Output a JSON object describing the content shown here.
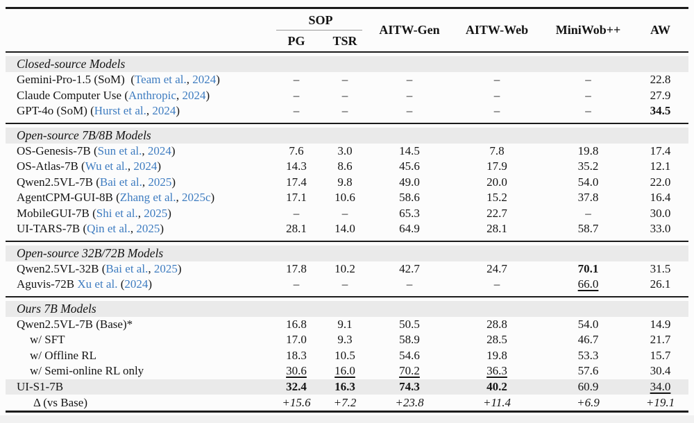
{
  "colors": {
    "link": "#3e7cc0",
    "band": "#eaeaea",
    "rule": "#1b1b1b",
    "subrule": "#9a9a9a",
    "text": "#141414"
  },
  "header": {
    "sop": "SOP",
    "pg": "PG",
    "tsr": "TSR",
    "cols": [
      "AITW-Gen",
      "AITW-Web",
      "MiniWob++",
      "AW"
    ]
  },
  "sections": [
    {
      "title": "Closed-source Models",
      "rows": [
        {
          "name": [
            {
              "t": "Gemini-Pro-1.5 (SoM)  (",
              "s": "t"
            },
            {
              "t": "Team et al.",
              "s": "l"
            },
            {
              "t": ", ",
              "s": "t"
            },
            {
              "t": "2024",
              "s": "l"
            },
            {
              "t": ")",
              "s": "t"
            }
          ],
          "values": [
            {
              "t": "–"
            },
            {
              "t": "–"
            },
            {
              "t": "–"
            },
            {
              "t": "–"
            },
            {
              "t": "–"
            },
            {
              "t": "22.8"
            }
          ]
        },
        {
          "name": [
            {
              "t": "Claude Computer Use (",
              "s": "t"
            },
            {
              "t": "Anthropic",
              "s": "l"
            },
            {
              "t": ", ",
              "s": "t"
            },
            {
              "t": "2024",
              "s": "l"
            },
            {
              "t": ")",
              "s": "t"
            }
          ],
          "values": [
            {
              "t": "–"
            },
            {
              "t": "–"
            },
            {
              "t": "–"
            },
            {
              "t": "–"
            },
            {
              "t": "–"
            },
            {
              "t": "27.9"
            }
          ]
        },
        {
          "name": [
            {
              "t": "GPT-4o (SoM) (",
              "s": "t"
            },
            {
              "t": "Hurst et al.",
              "s": "l"
            },
            {
              "t": ", ",
              "s": "t"
            },
            {
              "t": "2024",
              "s": "l"
            },
            {
              "t": ")",
              "s": "t"
            }
          ],
          "values": [
            {
              "t": "–"
            },
            {
              "t": "–"
            },
            {
              "t": "–"
            },
            {
              "t": "–"
            },
            {
              "t": "–"
            },
            {
              "t": "34.5",
              "s": "b"
            }
          ]
        }
      ]
    },
    {
      "title": "Open-source 7B/8B Models",
      "rows": [
        {
          "name": [
            {
              "t": "OS-Genesis-7B (",
              "s": "t"
            },
            {
              "t": "Sun et al.",
              "s": "l"
            },
            {
              "t": ", ",
              "s": "t"
            },
            {
              "t": "2024",
              "s": "l"
            },
            {
              "t": ")",
              "s": "t"
            }
          ],
          "values": [
            {
              "t": "7.6"
            },
            {
              "t": "3.0"
            },
            {
              "t": "14.5"
            },
            {
              "t": "7.8"
            },
            {
              "t": "19.8"
            },
            {
              "t": "17.4"
            }
          ]
        },
        {
          "name": [
            {
              "t": "OS-Atlas-7B (",
              "s": "t"
            },
            {
              "t": "Wu et al.",
              "s": "l"
            },
            {
              "t": ", ",
              "s": "t"
            },
            {
              "t": "2024",
              "s": "l"
            },
            {
              "t": ")",
              "s": "t"
            }
          ],
          "values": [
            {
              "t": "14.3"
            },
            {
              "t": "8.6"
            },
            {
              "t": "45.6"
            },
            {
              "t": "17.9"
            },
            {
              "t": "35.2"
            },
            {
              "t": "12.1"
            }
          ]
        },
        {
          "name": [
            {
              "t": "Qwen2.5VL-7B (",
              "s": "t"
            },
            {
              "t": "Bai et al.",
              "s": "l"
            },
            {
              "t": ", ",
              "s": "t"
            },
            {
              "t": "2025",
              "s": "l"
            },
            {
              "t": ")",
              "s": "t"
            }
          ],
          "values": [
            {
              "t": "17.4"
            },
            {
              "t": "9.8"
            },
            {
              "t": "49.0"
            },
            {
              "t": "20.0"
            },
            {
              "t": "54.0"
            },
            {
              "t": "22.0"
            }
          ]
        },
        {
          "name": [
            {
              "t": "AgentCPM-GUI-8B (",
              "s": "t"
            },
            {
              "t": "Zhang et al.",
              "s": "l"
            },
            {
              "t": ", ",
              "s": "t"
            },
            {
              "t": "2025c",
              "s": "l"
            },
            {
              "t": ")",
              "s": "t"
            }
          ],
          "values": [
            {
              "t": "17.1"
            },
            {
              "t": "10.6"
            },
            {
              "t": "58.6"
            },
            {
              "t": "15.2"
            },
            {
              "t": "37.8"
            },
            {
              "t": "16.4"
            }
          ]
        },
        {
          "name": [
            {
              "t": "MobileGUI-7B (",
              "s": "t"
            },
            {
              "t": "Shi et al.",
              "s": "l"
            },
            {
              "t": ", ",
              "s": "t"
            },
            {
              "t": "2025",
              "s": "l"
            },
            {
              "t": ")",
              "s": "t"
            }
          ],
          "values": [
            {
              "t": "–"
            },
            {
              "t": "–"
            },
            {
              "t": "65.3"
            },
            {
              "t": "22.7"
            },
            {
              "t": "–"
            },
            {
              "t": "30.0"
            }
          ]
        },
        {
          "name": [
            {
              "t": "UI-TARS-7B (",
              "s": "t"
            },
            {
              "t": "Qin et al.",
              "s": "l"
            },
            {
              "t": ", ",
              "s": "t"
            },
            {
              "t": "2025",
              "s": "l"
            },
            {
              "t": ")",
              "s": "t"
            }
          ],
          "values": [
            {
              "t": "28.1"
            },
            {
              "t": "14.0"
            },
            {
              "t": "64.9"
            },
            {
              "t": "28.1"
            },
            {
              "t": "58.7"
            },
            {
              "t": "33.0"
            }
          ]
        }
      ]
    },
    {
      "title": "Open-source 32B/72B Models",
      "rows": [
        {
          "name": [
            {
              "t": "Qwen2.5VL-32B (",
              "s": "t"
            },
            {
              "t": "Bai et al.",
              "s": "l"
            },
            {
              "t": ", ",
              "s": "t"
            },
            {
              "t": "2025",
              "s": "l"
            },
            {
              "t": ")",
              "s": "t"
            }
          ],
          "values": [
            {
              "t": "17.8"
            },
            {
              "t": "10.2"
            },
            {
              "t": "42.7"
            },
            {
              "t": "24.7"
            },
            {
              "t": "70.1",
              "s": "b"
            },
            {
              "t": "31.5"
            }
          ]
        },
        {
          "name": [
            {
              "t": "Aguvis-72B ",
              "s": "t"
            },
            {
              "t": "Xu et al.",
              "s": "l"
            },
            {
              "t": " (",
              "s": "t"
            },
            {
              "t": "2024",
              "s": "l"
            },
            {
              "t": ")",
              "s": "t"
            }
          ],
          "values": [
            {
              "t": "–"
            },
            {
              "t": "–"
            },
            {
              "t": "–"
            },
            {
              "t": "–"
            },
            {
              "t": "66.0",
              "s": "u"
            },
            {
              "t": "26.1"
            }
          ]
        }
      ]
    },
    {
      "title": "Ours 7B Models",
      "rows": [
        {
          "name": [
            {
              "t": "Qwen2.5VL-7B (Base)*",
              "s": "t"
            }
          ],
          "values": [
            {
              "t": "16.8"
            },
            {
              "t": "9.1"
            },
            {
              "t": "50.5"
            },
            {
              "t": "28.8"
            },
            {
              "t": "54.0"
            },
            {
              "t": "14.9"
            }
          ]
        },
        {
          "name": [
            {
              "t": "w/ SFT",
              "s": "t"
            }
          ],
          "indent": 1,
          "values": [
            {
              "t": "17.0"
            },
            {
              "t": "9.3"
            },
            {
              "t": "58.9"
            },
            {
              "t": "28.5"
            },
            {
              "t": "46.7"
            },
            {
              "t": "21.7"
            }
          ]
        },
        {
          "name": [
            {
              "t": "w/ Offline RL",
              "s": "t"
            }
          ],
          "indent": 1,
          "values": [
            {
              "t": "18.3"
            },
            {
              "t": "10.5"
            },
            {
              "t": "54.6"
            },
            {
              "t": "19.8"
            },
            {
              "t": "53.3"
            },
            {
              "t": "15.7"
            }
          ]
        },
        {
          "name": [
            {
              "t": "w/ Semi-online RL only",
              "s": "t"
            }
          ],
          "indent": 1,
          "values": [
            {
              "t": "30.6",
              "s": "u"
            },
            {
              "t": "16.0",
              "s": "u"
            },
            {
              "t": "70.2",
              "s": "u"
            },
            {
              "t": "36.3",
              "s": "u"
            },
            {
              "t": "57.6"
            },
            {
              "t": "30.4"
            }
          ]
        },
        {
          "name": [
            {
              "t": "UI-S1-7B",
              "s": "t"
            }
          ],
          "highlight": true,
          "values": [
            {
              "t": "32.4",
              "s": "b"
            },
            {
              "t": "16.3",
              "s": "b"
            },
            {
              "t": "74.3",
              "s": "b"
            },
            {
              "t": "40.2",
              "s": "b"
            },
            {
              "t": "60.9"
            },
            {
              "t": "34.0",
              "s": "u"
            }
          ]
        },
        {
          "name": [
            {
              "t": "Δ (vs Base)",
              "s": "t"
            }
          ],
          "indent": 2,
          "delta": true,
          "values": [
            {
              "t": "+15.6",
              "s": "i"
            },
            {
              "t": "+7.2",
              "s": "i"
            },
            {
              "t": "+23.8",
              "s": "i"
            },
            {
              "t": "+11.4",
              "s": "i"
            },
            {
              "t": "+6.9",
              "s": "i"
            },
            {
              "t": "+19.1",
              "s": "i"
            }
          ]
        }
      ]
    }
  ]
}
